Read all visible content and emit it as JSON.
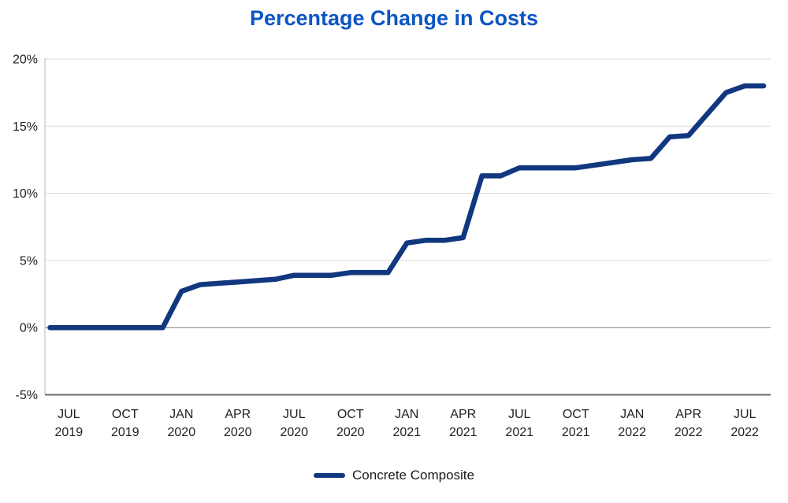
{
  "title": "Percentage Change in Costs",
  "legend": {
    "label": "Concrete Composite"
  },
  "colors": {
    "title": "#0d55c4",
    "line": "#11387f",
    "grid": "#d9d9d9",
    "zero_line": "#9e9e9e",
    "axis_y": "#c4c4c4",
    "axis_x": "#6b6b6b",
    "tick_text": "#1f1f1f"
  },
  "chart_data": {
    "type": "line",
    "title": "Percentage Change in Costs",
    "xlabel": "",
    "ylabel": "",
    "ylim": [
      -5,
      20
    ],
    "grid": "horizontal",
    "legend_position": "bottom-center",
    "y_ticks": [
      {
        "label": "20%",
        "value": 20
      },
      {
        "label": "15%",
        "value": 15
      },
      {
        "label": "10%",
        "value": 10
      },
      {
        "label": "5%",
        "value": 5
      },
      {
        "label": "0%",
        "value": 0
      },
      {
        "label": "-5%",
        "value": -5
      }
    ],
    "x": [
      "Jun 2019",
      "Jul 2019",
      "Aug 2019",
      "Sep 2019",
      "Oct 2019",
      "Nov 2019",
      "Dec 2019",
      "Jan 2020",
      "Feb 2020",
      "Mar 2020",
      "Apr 2020",
      "May 2020",
      "Jun 2020",
      "Jul 2020",
      "Aug 2020",
      "Sep 2020",
      "Oct 2020",
      "Nov 2020",
      "Dec 2020",
      "Jan 2021",
      "Feb 2021",
      "Mar 2021",
      "Apr 2021",
      "May 2021",
      "Jun 2021",
      "Jul 2021",
      "Aug 2021",
      "Sep 2021",
      "Oct 2021",
      "Nov 2021",
      "Dec 2021",
      "Jan 2022",
      "Feb 2022",
      "Mar 2022",
      "Apr 2022",
      "May 2022",
      "Jun 2022",
      "Jul 2022",
      "Aug 2022"
    ],
    "x_ticks": [
      {
        "month": "JUL",
        "year": "2019",
        "index": 1
      },
      {
        "month": "OCT",
        "year": "2019",
        "index": 4
      },
      {
        "month": "JAN",
        "year": "2020",
        "index": 7
      },
      {
        "month": "APR",
        "year": "2020",
        "index": 10
      },
      {
        "month": "JUL",
        "year": "2020",
        "index": 13
      },
      {
        "month": "OCT",
        "year": "2020",
        "index": 16
      },
      {
        "month": "JAN",
        "year": "2021",
        "index": 19
      },
      {
        "month": "APR",
        "year": "2021",
        "index": 22
      },
      {
        "month": "JUL",
        "year": "2021",
        "index": 25
      },
      {
        "month": "OCT",
        "year": "2021",
        "index": 28
      },
      {
        "month": "JAN",
        "year": "2022",
        "index": 31
      },
      {
        "month": "APR",
        "year": "2022",
        "index": 34
      },
      {
        "month": "JUL",
        "year": "2022",
        "index": 37
      }
    ],
    "series": [
      {
        "name": "Concrete Composite",
        "color": "#11387f",
        "values": [
          0,
          0,
          0,
          0,
          0,
          0,
          0,
          2.7,
          3.2,
          3.3,
          3.4,
          3.5,
          3.6,
          3.9,
          3.9,
          3.9,
          4.1,
          4.1,
          4.1,
          6.3,
          6.5,
          6.5,
          6.7,
          11.3,
          11.3,
          11.9,
          11.9,
          11.9,
          11.9,
          12.1,
          12.3,
          12.5,
          12.6,
          14.2,
          14.3,
          15.9,
          17.5,
          18.0,
          18.0
        ]
      }
    ]
  }
}
